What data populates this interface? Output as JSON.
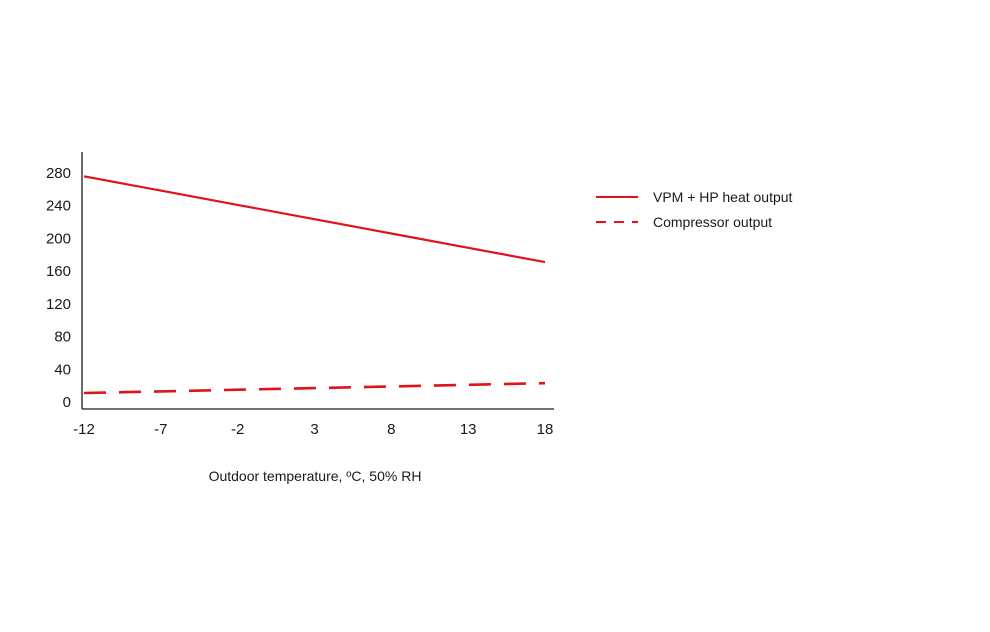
{
  "chart_data": {
    "type": "line",
    "title": "",
    "xlabel": "Outdoor temperature, ºC, 50% RH",
    "ylabel": "",
    "x": [
      -12,
      -7,
      -2,
      3,
      8,
      13,
      18
    ],
    "x_tick_labels": [
      "-12",
      "-7",
      "-2",
      "3",
      "8",
      "13",
      "18"
    ],
    "y_ticks": [
      0,
      40,
      80,
      120,
      160,
      200,
      240,
      280
    ],
    "y_tick_labels": [
      "0",
      "40",
      "80",
      "120",
      "160",
      "200",
      "240",
      "280"
    ],
    "xlim": [
      -12,
      18
    ],
    "ylim": [
      0,
      300
    ],
    "grid": false,
    "legend_position": "right",
    "series": [
      {
        "name": "VPM + HP heat output",
        "style": "solid",
        "color": "#e0121a",
        "values": [
          276,
          258.5,
          241,
          223.5,
          206,
          188.5,
          171
        ]
      },
      {
        "name": "Compressor output",
        "style": "dashed",
        "color": "#e0121a",
        "values": [
          11,
          13,
          15,
          17,
          19,
          21,
          23
        ]
      }
    ]
  }
}
